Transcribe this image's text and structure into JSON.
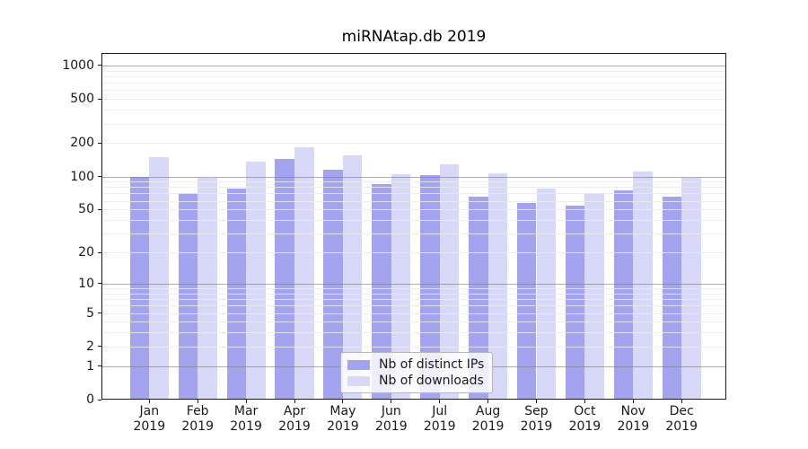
{
  "chart_data": {
    "type": "bar",
    "title": "miRNAtap.db 2019",
    "yscale": "log10(1+y)",
    "grid": "on",
    "legend_position": "lower center",
    "categories": [
      "Jan",
      "Feb",
      "Mar",
      "Apr",
      "May",
      "Jun",
      "Jul",
      "Aug",
      "Sep",
      "Oct",
      "Nov",
      "Dec"
    ],
    "x_year": "2019",
    "series": [
      {
        "name": "Nb of distinct IPs",
        "color": "#a3a3ef",
        "values": [
          100,
          71,
          77,
          144,
          116,
          85,
          103,
          66,
          57,
          54,
          75,
          65
        ]
      },
      {
        "name": "Nb of downloads",
        "color": "#d8d8f8",
        "values": [
          150,
          97,
          135,
          183,
          156,
          104,
          129,
          107,
          78,
          70,
          110,
          97
        ]
      }
    ],
    "y_tick_labels": [
      "0",
      "1",
      "2",
      "5",
      "10",
      "20",
      "50",
      "100",
      "200",
      "500",
      "1000"
    ],
    "y_tick_values": [
      0,
      1,
      2,
      5,
      10,
      20,
      50,
      100,
      200,
      500,
      1000
    ],
    "y_major_gridlines": [
      1,
      10,
      100,
      1000
    ],
    "y_minor_gridlines": [
      2,
      3,
      4,
      5,
      6,
      7,
      8,
      9,
      20,
      30,
      40,
      50,
      60,
      70,
      80,
      90,
      200,
      300,
      400,
      500,
      600,
      700,
      800,
      900
    ],
    "ylim": [
      0,
      1300
    ]
  },
  "colors": {
    "background": "#ffffff",
    "spine": "#1a1a1a",
    "grid_major": "rgba(128,128,128,0.65)",
    "grid_minor": "rgba(235,235,235,0.85)",
    "tick_label": "#1a1a1a",
    "legend_border": "#b7b7b7",
    "legend_background": "rgba(255,255,255,0.82)"
  }
}
